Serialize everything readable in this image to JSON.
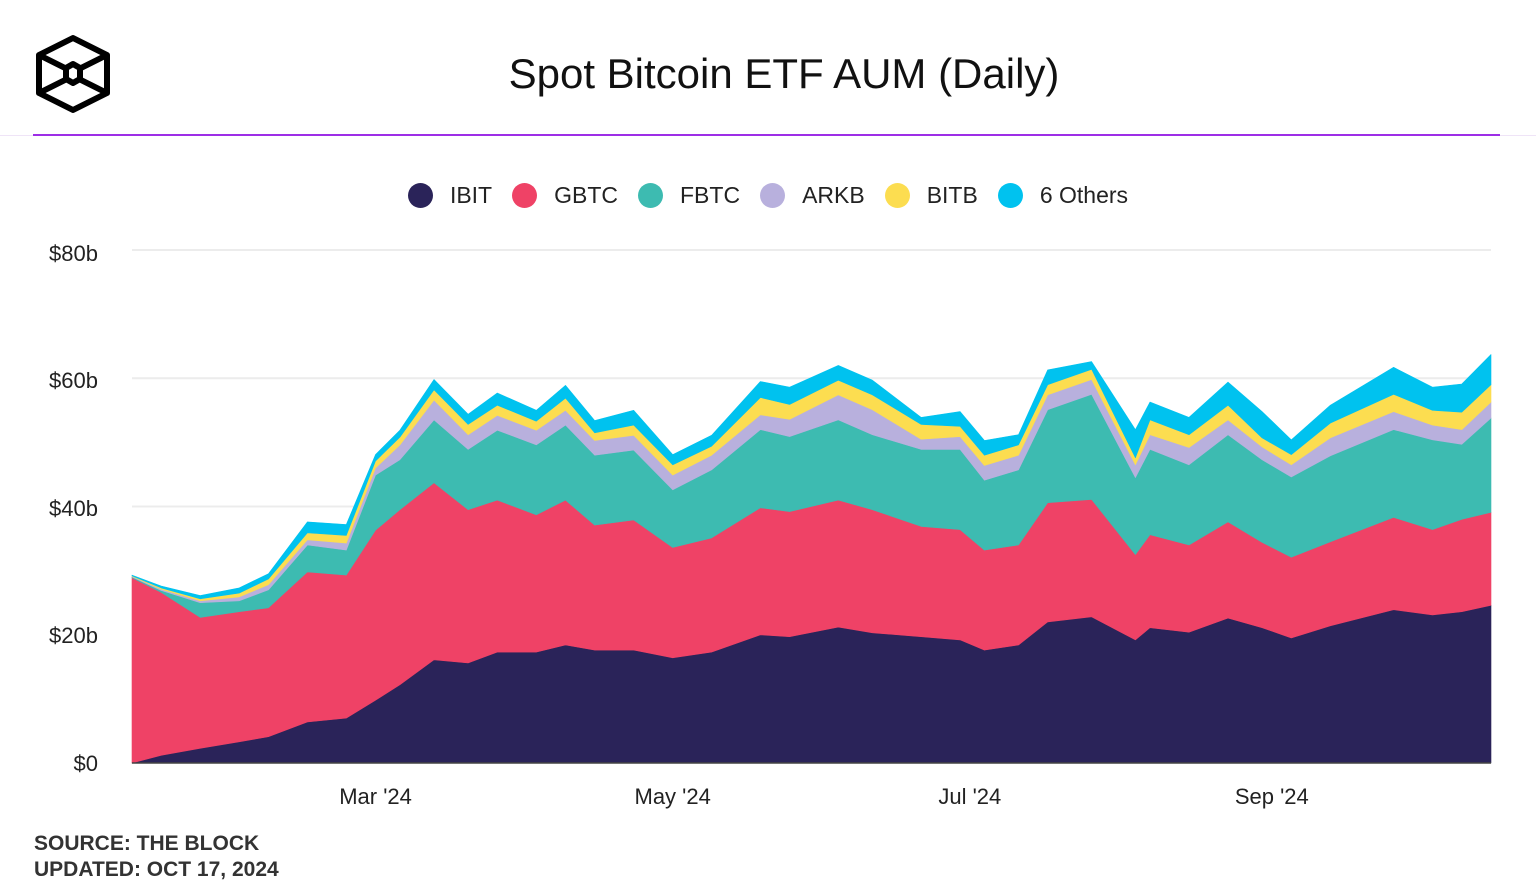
{
  "header": {
    "title": "Spot Bitcoin ETF AUM (Daily)",
    "logo": "The Block cube logo"
  },
  "footer": {
    "source": "SOURCE: THE BLOCK",
    "updated": "UPDATED: OCT 17, 2024"
  },
  "chart_data": {
    "type": "area",
    "stacked": true,
    "title": "Spot Bitcoin ETF AUM (Daily)",
    "xlabel": "",
    "ylabel": "",
    "ylim": [
      0,
      80
    ],
    "yunit": "$b",
    "xlim": [
      "2024-01-11",
      "2024-10-16"
    ],
    "yticks": [
      "$0",
      "$20b",
      "$40b",
      "$60b",
      "$80b"
    ],
    "ytick_values": [
      0,
      20,
      40,
      60,
      80
    ],
    "xticks": [
      "Mar '24",
      "May '24",
      "Jul '24",
      "Sep '24"
    ],
    "xtick_dates": [
      "2024-03-01",
      "2024-05-01",
      "2024-07-01",
      "2024-09-01"
    ],
    "grid": true,
    "legend_position": "top-center",
    "x": [
      "2024-01-11",
      "2024-01-17",
      "2024-01-25",
      "2024-02-02",
      "2024-02-08",
      "2024-02-16",
      "2024-02-24",
      "2024-03-01",
      "2024-03-06",
      "2024-03-13",
      "2024-03-20",
      "2024-03-26",
      "2024-04-03",
      "2024-04-09",
      "2024-04-15",
      "2024-04-23",
      "2024-05-01",
      "2024-05-09",
      "2024-05-19",
      "2024-05-25",
      "2024-06-04",
      "2024-06-11",
      "2024-06-21",
      "2024-06-29",
      "2024-07-04",
      "2024-07-11",
      "2024-07-17",
      "2024-07-26",
      "2024-08-04",
      "2024-08-07",
      "2024-08-15",
      "2024-08-23",
      "2024-08-30",
      "2024-09-05",
      "2024-09-13",
      "2024-09-26",
      "2024-10-04",
      "2024-10-10",
      "2024-10-16"
    ],
    "series": [
      {
        "name": "IBIT",
        "color": "#2a2359",
        "values": [
          0,
          1.2,
          2.3,
          3.3,
          4.1,
          6.4,
          7.0,
          9.8,
          12.2,
          16.1,
          15.6,
          17.3,
          17.3,
          18.4,
          17.6,
          17.6,
          16.4,
          17.3,
          20.0,
          19.7,
          21.2,
          20.3,
          19.7,
          19.2,
          17.6,
          18.4,
          22.0,
          22.8,
          19.2,
          21.1,
          20.4,
          22.6,
          21.1,
          19.5,
          21.4,
          23.9,
          23.1,
          23.6,
          24.6
        ]
      },
      {
        "name": "GBTC",
        "color": "#ef4266",
        "values": [
          28.9,
          25.4,
          20.4,
          20.3,
          20.1,
          23.4,
          22.3,
          26.5,
          27.3,
          27.6,
          23.9,
          23.7,
          21.4,
          22.6,
          19.5,
          20.3,
          17.2,
          17.8,
          19.8,
          19.5,
          19.8,
          19.2,
          17.2,
          17.2,
          15.6,
          15.6,
          18.6,
          18.3,
          13.3,
          14.5,
          13.6,
          15.0,
          13.3,
          12.6,
          13.1,
          14.4,
          13.3,
          14.4,
          14.5
        ]
      },
      {
        "name": "FBTC",
        "color": "#3dbbb1",
        "values": [
          0.1,
          0.3,
          2.3,
          1.7,
          2.8,
          4.2,
          3.9,
          8.6,
          7.8,
          9.8,
          9.4,
          10.9,
          10.9,
          11.7,
          10.9,
          10.9,
          9.0,
          10.6,
          12.2,
          11.7,
          12.5,
          11.7,
          12.0,
          12.5,
          10.9,
          11.7,
          14.5,
          16.4,
          12.0,
          13.3,
          12.5,
          13.6,
          12.9,
          12.5,
          13.4,
          13.7,
          14.0,
          11.7,
          14.7
        ]
      },
      {
        "name": "ARKB",
        "color": "#b8b0dd",
        "values": [
          0.1,
          0.2,
          0.3,
          0.6,
          0.8,
          0.8,
          1.1,
          1.1,
          2.3,
          3.1,
          2.3,
          2.3,
          2.3,
          2.3,
          2.3,
          2.3,
          2.3,
          2.3,
          2.3,
          2.7,
          3.9,
          3.9,
          1.6,
          2.0,
          2.3,
          2.3,
          2.3,
          2.3,
          2.0,
          2.3,
          2.7,
          2.3,
          2.0,
          1.9,
          2.8,
          2.8,
          2.3,
          2.3,
          2.5
        ]
      },
      {
        "name": "BITB",
        "color": "#fcdd50",
        "values": [
          0.1,
          0.2,
          0.3,
          0.6,
          0.9,
          1.1,
          1.2,
          1.1,
          1.2,
          1.6,
          1.6,
          1.6,
          1.4,
          1.9,
          1.2,
          1.6,
          1.6,
          1.4,
          2.7,
          2.3,
          2.3,
          2.3,
          2.3,
          1.6,
          1.6,
          1.6,
          1.6,
          1.6,
          1.1,
          2.3,
          2.0,
          2.3,
          1.4,
          1.6,
          2.3,
          2.7,
          2.3,
          2.7,
          2.7
        ]
      },
      {
        "name": "6 Others",
        "color": "#00c2ef",
        "values": [
          0.1,
          0.3,
          0.5,
          0.8,
          0.8,
          1.7,
          1.7,
          1.0,
          1.1,
          1.6,
          1.6,
          1.9,
          1.7,
          2.0,
          1.9,
          2.3,
          1.6,
          1.7,
          2.5,
          2.7,
          2.3,
          2.3,
          1.1,
          2.3,
          2.3,
          1.6,
          2.3,
          1.2,
          4.4,
          2.8,
          2.7,
          3.6,
          4.1,
          2.3,
          2.8,
          4.2,
          3.6,
          4.4,
          4.7
        ]
      }
    ]
  }
}
